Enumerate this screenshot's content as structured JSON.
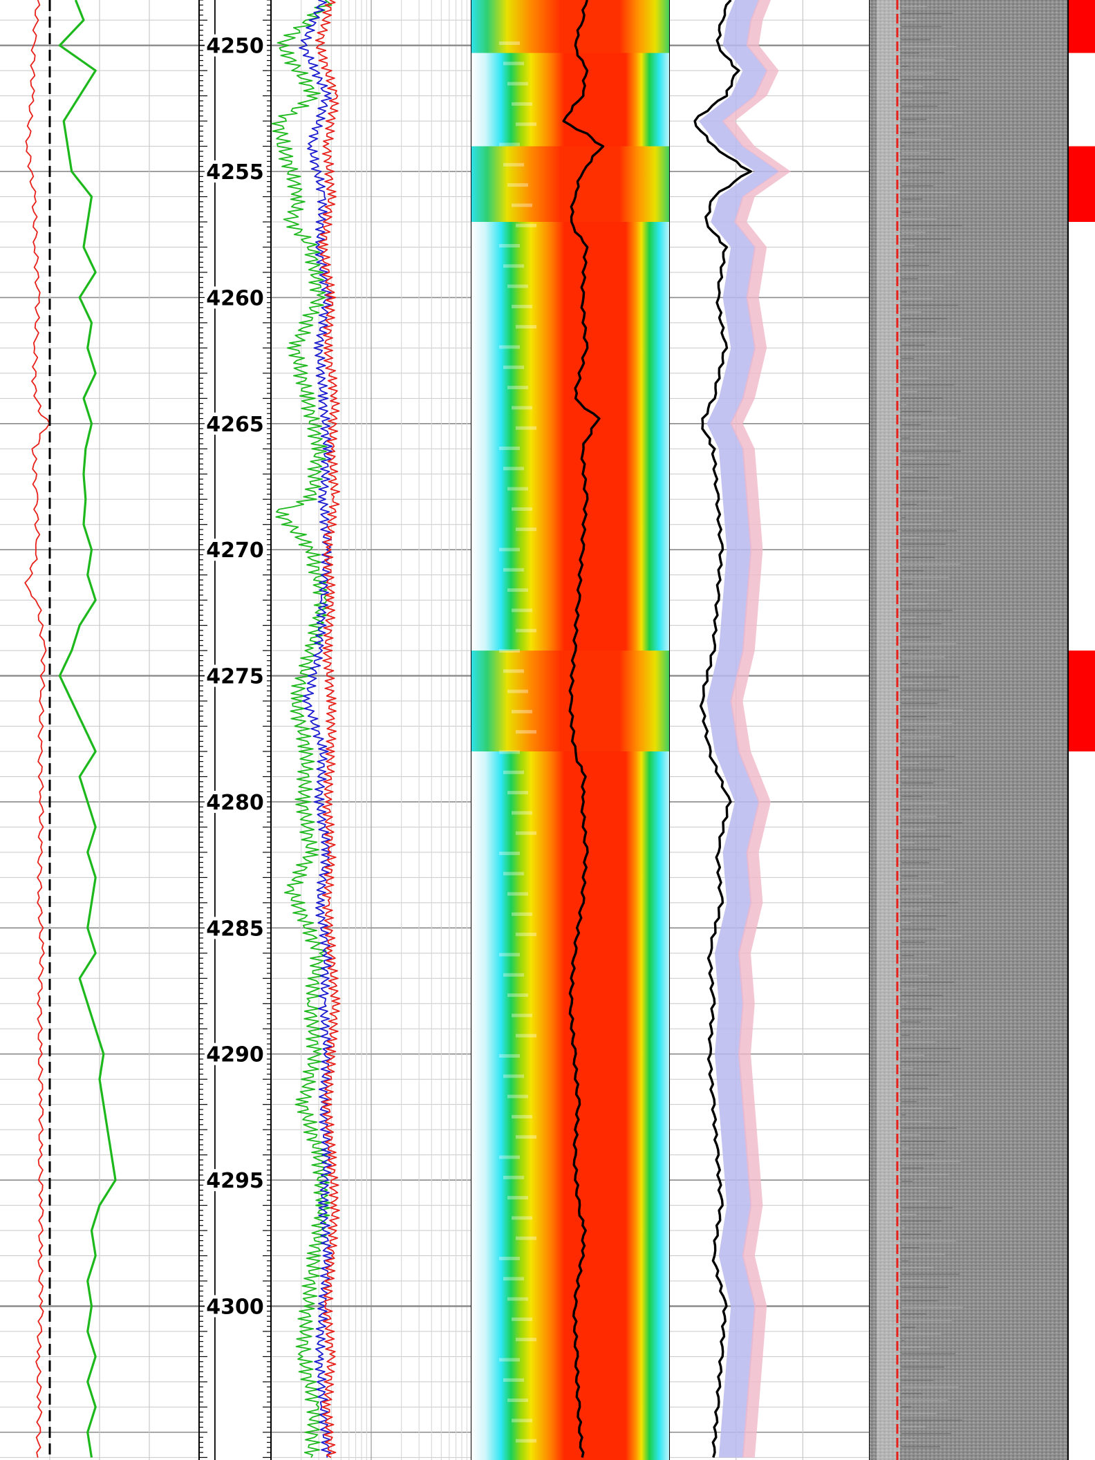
{
  "chart_data": {
    "type": "line",
    "title": "",
    "xlabel": "",
    "ylabel": "",
    "depth_range": [
      4248.2,
      4306.1
    ],
    "depth_labels": [
      "4250",
      "4255",
      "4260",
      "4265",
      "4270",
      "4275",
      "4280",
      "4285",
      "4290",
      "4295",
      "4300"
    ],
    "depth_label_values": [
      4250,
      4255,
      4260,
      4265,
      4270,
      4275,
      4280,
      4285,
      4290,
      4295,
      4300
    ],
    "major_depth_lines": [
      4250,
      4275,
      4300
    ],
    "grid": true,
    "colors": {
      "red_curve": "#e8201a",
      "green_curve": "#1cb81c",
      "blue_curve": "#1a1ad0",
      "dashed_curve": "#000000",
      "grid_major": "#8a8a8a",
      "grid_minor": "#c8c8c8",
      "flag_fill": "#ff0000",
      "image_track": "#8c8c8c",
      "density_overlay": "#b8b8f0"
    },
    "red_flag_intervals": [
      [
        4248.2,
        4250.3
      ],
      [
        4254.0,
        4257.0
      ],
      [
        4274.0,
        4278.0
      ]
    ],
    "spectrogram_bright_bands": [
      [
        4248.2,
        4250.3
      ],
      [
        4254.0,
        4257.0
      ],
      [
        4274.0,
        4278.0
      ]
    ],
    "series": [
      {
        "track": 1,
        "color": "red",
        "scale": [
          0,
          100
        ],
        "depth": [
          4248.2,
          4250,
          4252,
          4254,
          4256,
          4258,
          4260,
          4262,
          4263.5,
          4264.5,
          4265,
          4266,
          4268,
          4270,
          4271.5,
          4272,
          4274,
          4276,
          4278,
          4280,
          4282,
          4284,
          4286,
          4288,
          4290,
          4292,
          4294,
          4296,
          4298,
          4300,
          4302,
          4304,
          4306
        ],
        "values": [
          19,
          17,
          16,
          14,
          17,
          18,
          19,
          18,
          17,
          20,
          24,
          17,
          18,
          19,
          13,
          19,
          22,
          21,
          20,
          21,
          20,
          20,
          21,
          20,
          20,
          21,
          20,
          21,
          20,
          21,
          19,
          20,
          19
        ]
      },
      {
        "track": 1,
        "color": "green",
        "scale": [
          0,
          100
        ],
        "depth": [
          4248.2,
          4249,
          4250,
          4251,
          4252,
          4253,
          4254,
          4255,
          4256,
          4257,
          4258,
          4259,
          4260,
          4261,
          4262,
          4263,
          4264,
          4265,
          4266,
          4267,
          4268,
          4269,
          4270,
          4271,
          4272,
          4273,
          4274,
          4275,
          4276,
          4277,
          4278,
          4279,
          4280,
          4281,
          4282,
          4283,
          4284,
          4285,
          4286,
          4287,
          4288,
          4289,
          4290,
          4291,
          4292,
          4293,
          4294,
          4295,
          4296,
          4297,
          4298,
          4299,
          4300,
          4301,
          4302,
          4303,
          4304,
          4305,
          4306
        ],
        "values": [
          38,
          42,
          30,
          48,
          40,
          32,
          34,
          36,
          46,
          44,
          42,
          48,
          40,
          46,
          44,
          48,
          42,
          46,
          43,
          42,
          43,
          42,
          46,
          44,
          48,
          40,
          36,
          30,
          36,
          42,
          48,
          40,
          44,
          48,
          44,
          48,
          46,
          44,
          48,
          40,
          44,
          48,
          52,
          50,
          52,
          54,
          56,
          58,
          50,
          46,
          48,
          44,
          46,
          44,
          48,
          44,
          48,
          44,
          46
        ]
      },
      {
        "track": 1,
        "color": "black-dashed",
        "scale": [
          0,
          100
        ],
        "depth": [
          4248.2,
          4306.1
        ],
        "values": [
          25,
          25
        ]
      },
      {
        "track": 2,
        "color": "black",
        "scale": [
          0,
          100
        ],
        "depth": [
          4248.2,
          4306.1
        ],
        "values": [
          22,
          22
        ]
      },
      {
        "track": 3,
        "color": "green",
        "scale": [
          0,
          100
        ],
        "depth": [
          4248.2,
          4250,
          4252,
          4253,
          4254,
          4256,
          4257,
          4258,
          4260,
          4262,
          4264,
          4266,
          4268,
          4268.5,
          4270,
          4272,
          4274,
          4276,
          4278,
          4280,
          4282,
          4283.5,
          4286,
          4288,
          4290,
          4292,
          4294,
          4296,
          4298,
          4300,
          4302,
          4304,
          4306
        ],
        "values": [
          30,
          5,
          22,
          4,
          6,
          14,
          10,
          20,
          24,
          12,
          18,
          24,
          20,
          4,
          20,
          26,
          20,
          12,
          18,
          16,
          20,
          10,
          24,
          20,
          22,
          16,
          24,
          26,
          22,
          18,
          16,
          22,
          20
        ]
      },
      {
        "track": 3,
        "color": "blue",
        "scale": [
          0,
          100
        ],
        "depth": [
          4248.2,
          4250,
          4252,
          4254,
          4256,
          4258,
          4260,
          4262,
          4264,
          4266,
          4268,
          4270,
          4272,
          4274,
          4276,
          4278,
          4280,
          4282,
          4284,
          4286,
          4288,
          4290,
          4292,
          4294,
          4296,
          4298,
          4300,
          4302,
          4304,
          4306
        ],
        "values": [
          26,
          16,
          28,
          20,
          26,
          24,
          28,
          24,
          26,
          28,
          26,
          28,
          26,
          24,
          18,
          26,
          24,
          28,
          24,
          28,
          26,
          28,
          26,
          28,
          26,
          28,
          26,
          24,
          26,
          28
        ]
      },
      {
        "track": 3,
        "color": "red",
        "scale": [
          0,
          100
        ],
        "depth": [
          4248.2,
          4250,
          4252,
          4254,
          4256,
          4258,
          4260,
          4262,
          4264,
          4266,
          4268,
          4270,
          4272,
          4274,
          4276,
          4278,
          4280,
          4282,
          4284,
          4286,
          4288,
          4290,
          4292,
          4294,
          4296,
          4298,
          4300,
          4302,
          4304,
          4306
        ],
        "values": [
          30,
          24,
          32,
          28,
          30,
          26,
          30,
          28,
          32,
          30,
          32,
          28,
          30,
          28,
          30,
          30,
          28,
          30,
          28,
          30,
          32,
          30,
          28,
          30,
          32,
          30,
          28,
          30,
          28,
          30
        ]
      },
      {
        "track": 4,
        "color": "black",
        "scale": [
          0,
          100
        ],
        "depth": [
          4248.2,
          4249,
          4250,
          4251,
          4252,
          4253,
          4253.5,
          4254,
          4255,
          4256,
          4257,
          4258,
          4260,
          4262,
          4264,
          4264.8,
          4266,
          4268,
          4270,
          4272,
          4274,
          4276,
          4278,
          4279,
          4280,
          4282,
          4284,
          4286,
          4288,
          4290,
          4292,
          4294,
          4296,
          4297,
          4298,
          4300,
          4302,
          4304,
          4306
        ],
        "values": [
          58,
          56,
          52,
          58,
          56,
          46,
          58,
          66,
          56,
          52,
          50,
          58,
          56,
          58,
          52,
          64,
          56,
          58,
          56,
          54,
          52,
          50,
          52,
          57,
          56,
          58,
          56,
          52,
          50,
          52,
          54,
          52,
          54,
          57,
          56,
          52,
          53,
          54,
          56
        ]
      },
      {
        "track": 5,
        "color": "black",
        "scale": [
          0,
          100
        ],
        "depth": [
          4248.2,
          4249,
          4250,
          4251,
          4252,
          4253,
          4254,
          4255,
          4256,
          4257,
          4258,
          4260,
          4262,
          4264,
          4265,
          4266,
          4268,
          4270,
          4272,
          4274,
          4276,
          4278,
          4280,
          4282,
          4284,
          4286,
          4288,
          4290,
          4292,
          4294,
          4296,
          4298,
          4300,
          4302,
          4304,
          4306
        ],
        "values": [
          30,
          26,
          24,
          34,
          28,
          12,
          22,
          40,
          22,
          18,
          28,
          24,
          28,
          22,
          16,
          22,
          24,
          26,
          24,
          22,
          16,
          20,
          30,
          24,
          26,
          20,
          22,
          20,
          22,
          24,
          26,
          22,
          28,
          26,
          24,
          22
        ]
      }
    ]
  }
}
